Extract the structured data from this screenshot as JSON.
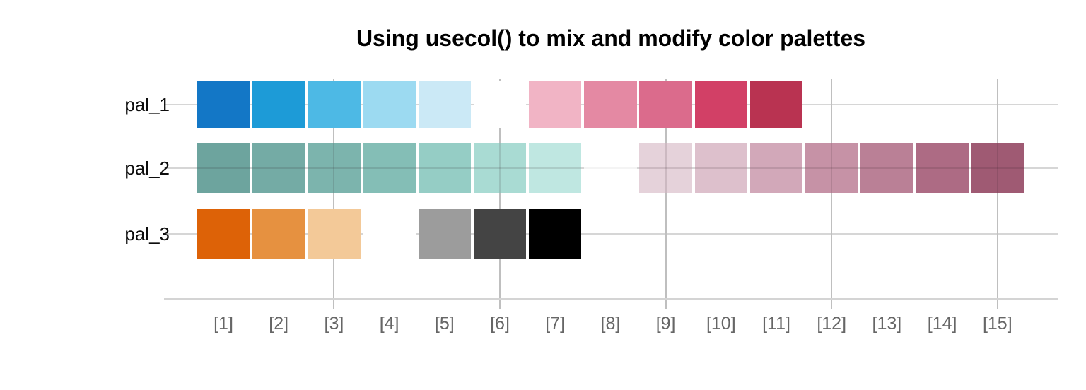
{
  "title": "Using usecol() to mix and modify color palettes",
  "colors": {
    "background": "#ffffff",
    "title_text": "#000000",
    "row_label_text": "#0d0d0d",
    "tick_label_text": "#666666",
    "hgrid": "#d6d6d6",
    "vgrid": "#bfbfbf",
    "axis": "#d4d4d4"
  },
  "chart_data": {
    "type": "heatmap",
    "title": "Using usecol() to mix and modify color palettes",
    "xlabel": "",
    "ylabel": "",
    "categories": [
      "[1]",
      "[2]",
      "[3]",
      "[4]",
      "[5]",
      "[6]",
      "[7]",
      "[8]",
      "[9]",
      "[10]",
      "[11]",
      "[12]",
      "[13]",
      "[14]",
      "[15]"
    ],
    "grid": "on",
    "vertical_gridline_positions": [
      3,
      6,
      9,
      12,
      15
    ],
    "rows": [
      {
        "label": "pal_1",
        "n": 11,
        "alpha": 1,
        "colors": [
          "#1377c6",
          "#1d9bd7",
          "#4db9e5",
          "#9cdaf1",
          "#cbe9f6",
          "#ffffff",
          "#f1b4c5",
          "#e489a3",
          "#db6b8c",
          "#d24066",
          "#b93351"
        ]
      },
      {
        "label": "pal_2",
        "n": 15,
        "alpha": 0.75,
        "colors": [
          "#6da49e",
          "#74aba5",
          "#7cb4ad",
          "#84beb6",
          "#95cdc5",
          "#a9dbd3",
          "#bfe7e1",
          "#ffffff",
          "#e5d2da",
          "#ddc0cc",
          "#d2a8b9",
          "#c692a6",
          "#ba8096",
          "#ad6b84",
          "#9f5a73"
        ]
      },
      {
        "label": "pal_3",
        "n": 7,
        "alpha": 1,
        "colors": [
          "#dd6207",
          "#e69140",
          "#f3c998",
          "#ffffff",
          "#9c9c9c",
          "#444444",
          "#000000"
        ]
      }
    ]
  }
}
